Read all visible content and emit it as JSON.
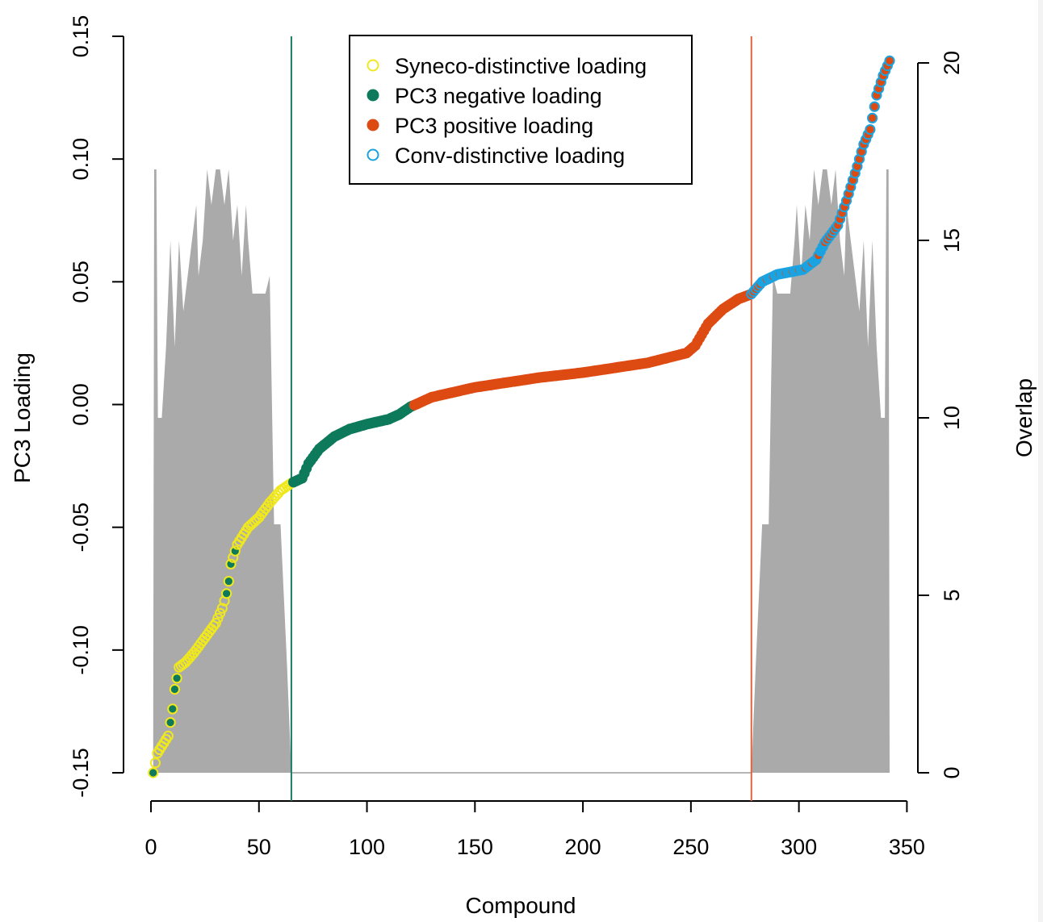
{
  "chart_data": {
    "type": "scatter",
    "title": "",
    "xlabel": "Compound",
    "ylabel": "PC3 Loading",
    "y2label": "Overlap",
    "xlim": [
      0,
      342
    ],
    "ylim": [
      -0.15,
      0.15
    ],
    "y2lim": [
      0,
      20
    ],
    "x_ticks": [
      "0",
      "50",
      "100",
      "150",
      "200",
      "250",
      "300",
      "350"
    ],
    "y_ticks": [
      "-0.15",
      "-0.10",
      "-0.05",
      "0.00",
      "0.05",
      "0.10",
      "0.15"
    ],
    "y2_ticks": [
      "0",
      "5",
      "10",
      "15",
      "20"
    ],
    "vlines": [
      {
        "name": "negative-cutoff",
        "x": 65,
        "color": "#1b7c62"
      },
      {
        "name": "positive-cutoff",
        "x": 278,
        "color": "#e0643a"
      }
    ],
    "legend": {
      "position": "top-center",
      "entries": [
        {
          "label": "Syneco-distinctive loading",
          "style": "open",
          "color": "#f0e81e"
        },
        {
          "label": "PC3 negative loading",
          "style": "filled",
          "color": "#0e7a5c"
        },
        {
          "label": "PC3 positive loading",
          "style": "filled",
          "color": "#dd4a12"
        },
        {
          "label": "Conv-distinctive loading",
          "style": "open",
          "color": "#1aa3e0"
        }
      ]
    },
    "colors": {
      "syneco": "#f0e81e",
      "negative": "#0e7a5c",
      "positive": "#dd4a12",
      "conv": "#1aa3e0",
      "overlap_fill": "#aaaaaa"
    },
    "loading_curve_knots": [
      [
        1,
        -0.15
      ],
      [
        3,
        -0.142
      ],
      [
        8,
        -0.135
      ],
      [
        10,
        -0.124
      ],
      [
        11,
        -0.116
      ],
      [
        13,
        -0.107
      ],
      [
        16,
        -0.105
      ],
      [
        20,
        -0.101
      ],
      [
        25,
        -0.095
      ],
      [
        30,
        -0.089
      ],
      [
        33,
        -0.083
      ],
      [
        35,
        -0.077
      ],
      [
        36,
        -0.072
      ],
      [
        37,
        -0.065
      ],
      [
        40,
        -0.057
      ],
      [
        45,
        -0.05
      ],
      [
        50,
        -0.046
      ],
      [
        55,
        -0.04
      ],
      [
        60,
        -0.035
      ],
      [
        65,
        -0.032
      ],
      [
        70,
        -0.03
      ],
      [
        73,
        -0.024
      ],
      [
        78,
        -0.018
      ],
      [
        85,
        -0.013
      ],
      [
        92,
        -0.01
      ],
      [
        100,
        -0.008
      ],
      [
        110,
        -0.006
      ],
      [
        115,
        -0.004
      ],
      [
        120,
        -0.001
      ],
      [
        130,
        0.003
      ],
      [
        150,
        0.007
      ],
      [
        180,
        0.011
      ],
      [
        200,
        0.013
      ],
      [
        230,
        0.017
      ],
      [
        248,
        0.021
      ],
      [
        252,
        0.024
      ],
      [
        258,
        0.033
      ],
      [
        265,
        0.039
      ],
      [
        272,
        0.043
      ],
      [
        278,
        0.045
      ],
      [
        283,
        0.05
      ],
      [
        290,
        0.053
      ],
      [
        302,
        0.055
      ],
      [
        308,
        0.059
      ],
      [
        312,
        0.066
      ],
      [
        318,
        0.073
      ],
      [
        322,
        0.083
      ],
      [
        327,
        0.097
      ],
      [
        330,
        0.106
      ],
      [
        333,
        0.112
      ],
      [
        336,
        0.126
      ],
      [
        339,
        0.134
      ],
      [
        342,
        0.14
      ]
    ],
    "overlap_knots": [
      [
        1,
        0
      ],
      [
        1.5,
        17
      ],
      [
        2.5,
        17
      ],
      [
        3.2,
        10
      ],
      [
        5,
        10
      ],
      [
        7,
        12
      ],
      [
        9,
        15
      ],
      [
        11,
        12
      ],
      [
        13,
        15
      ],
      [
        15,
        13
      ],
      [
        17,
        14
      ],
      [
        19,
        15
      ],
      [
        21,
        16
      ],
      [
        22,
        14
      ],
      [
        24,
        15
      ],
      [
        26,
        17
      ],
      [
        28,
        16
      ],
      [
        30,
        17
      ],
      [
        32,
        17
      ],
      [
        34,
        16
      ],
      [
        36,
        17
      ],
      [
        38,
        15
      ],
      [
        40,
        16
      ],
      [
        42,
        14
      ],
      [
        44,
        16
      ],
      [
        45,
        15
      ],
      [
        47,
        13.5
      ],
      [
        53,
        13.5
      ],
      [
        55,
        14
      ],
      [
        57,
        7
      ],
      [
        60,
        7
      ],
      [
        63,
        3
      ],
      [
        65,
        0
      ]
    ],
    "overlap_right_mirrored": true,
    "sample_count": 342,
    "groups": {
      "negative_ranks": [
        1,
        9,
        10,
        11,
        12,
        35,
        36,
        37,
        39
      ],
      "syneco_outline_until": 65,
      "negative_fill_until": 121,
      "positive_fill_until": 342,
      "conv_outline_from": 278,
      "conv_extra_from": 283
    }
  }
}
